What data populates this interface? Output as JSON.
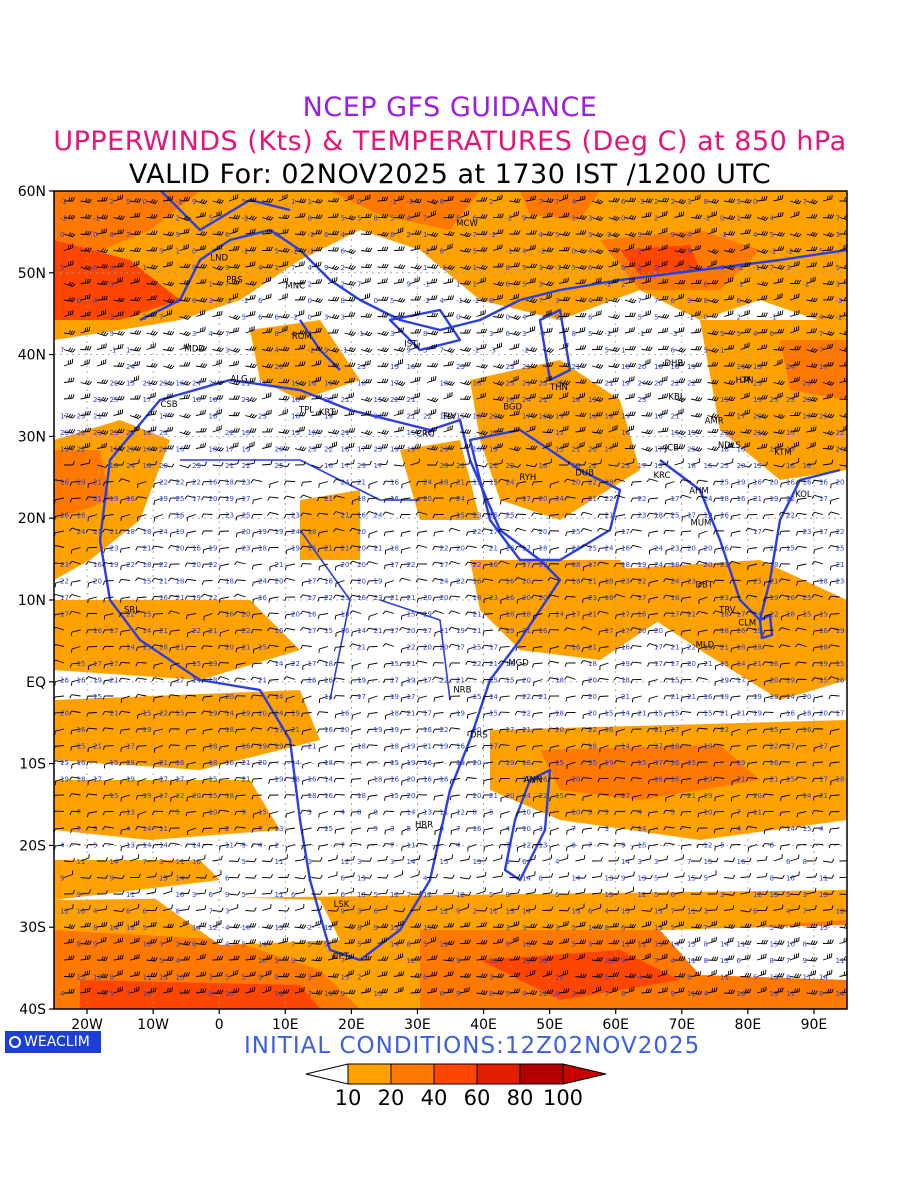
{
  "header": {
    "line1": "NCEP GFS GUIDANCE",
    "line2": "UPPERWINDS (Kts) & TEMPERATURES (Deg C) at 850 hPa",
    "line3": "VALID For: 02NOV2025 at 1730 IST /1200 UTC"
  },
  "colors": {
    "line1": "#9a1ee6",
    "line2": "#e6147a",
    "initial": "#3b5ee6",
    "coast": "#2a3ee8",
    "wind_barb": "#000000",
    "temperature_label": "#2a3ee8"
  },
  "map": {
    "lon_range": [
      -25,
      95
    ],
    "lat_range": [
      -40,
      60
    ],
    "lat_labels": [
      "60N",
      "50N",
      "40N",
      "30N",
      "20N",
      "10N",
      "EQ",
      "10S",
      "20S",
      "30S",
      "40S"
    ],
    "lon_labels": [
      "20W",
      "10W",
      "0",
      "10E",
      "20E",
      "30E",
      "40E",
      "50E",
      "60E",
      "70E",
      "80E",
      "90E"
    ],
    "stations": [
      {
        "code": "MCW",
        "lon": 37.5,
        "lat": 55.7
      },
      {
        "code": "LND",
        "lon": 0,
        "lat": 51.5
      },
      {
        "code": "PRS",
        "lon": 2.3,
        "lat": 48.8
      },
      {
        "code": "MNC",
        "lon": 11.5,
        "lat": 48.1
      },
      {
        "code": "ROM",
        "lon": 12.5,
        "lat": 41.9
      },
      {
        "code": "MDD",
        "lon": -3.7,
        "lat": 40.4
      },
      {
        "code": "ALG",
        "lon": 3.0,
        "lat": 36.7
      },
      {
        "code": "IST",
        "lon": 29.0,
        "lat": 41.0
      },
      {
        "code": "CSB",
        "lon": -7.6,
        "lat": 33.6
      },
      {
        "code": "TPL",
        "lon": 13.2,
        "lat": 32.9
      },
      {
        "code": "KRT",
        "lon": 16.3,
        "lat": 32.6
      },
      {
        "code": "CRO",
        "lon": 31.2,
        "lat": 30.0
      },
      {
        "code": "TLV",
        "lon": 34.8,
        "lat": 32.1
      },
      {
        "code": "BGD",
        "lon": 44.4,
        "lat": 33.3
      },
      {
        "code": "THN",
        "lon": 51.4,
        "lat": 35.7
      },
      {
        "code": "DHB",
        "lon": 68.8,
        "lat": 38.6
      },
      {
        "code": "KBL",
        "lon": 69.2,
        "lat": 34.5
      },
      {
        "code": "HTN",
        "lon": 79.5,
        "lat": 36.5
      },
      {
        "code": "AMR",
        "lon": 74.9,
        "lat": 31.6
      },
      {
        "code": "JCB",
        "lon": 68.5,
        "lat": 28.3
      },
      {
        "code": "NDLS",
        "lon": 77.2,
        "lat": 28.6
      },
      {
        "code": "KTM",
        "lon": 85.3,
        "lat": 27.7
      },
      {
        "code": "RYH",
        "lon": 46.7,
        "lat": 24.7
      },
      {
        "code": "DUB",
        "lon": 55.3,
        "lat": 25.2
      },
      {
        "code": "KRC",
        "lon": 67.0,
        "lat": 24.9
      },
      {
        "code": "AHM",
        "lon": 72.6,
        "lat": 23.0
      },
      {
        "code": "KOL",
        "lon": 88.4,
        "lat": 22.6
      },
      {
        "code": "MUM",
        "lon": 72.9,
        "lat": 19.1
      },
      {
        "code": "SRL",
        "lon": -13.2,
        "lat": 8.5
      },
      {
        "code": "DBT",
        "lon": 73.4,
        "lat": 11.5
      },
      {
        "code": "TRV",
        "lon": 76.9,
        "lat": 8.5
      },
      {
        "code": "CLM",
        "lon": 79.9,
        "lat": 6.9
      },
      {
        "code": "MLD",
        "lon": 73.5,
        "lat": 4.2
      },
      {
        "code": "MGD",
        "lon": 45.3,
        "lat": 2.0
      },
      {
        "code": "NRB",
        "lon": 36.8,
        "lat": -1.3
      },
      {
        "code": "DRS",
        "lon": 39.3,
        "lat": -6.8
      },
      {
        "code": "ANN",
        "lon": 47.5,
        "lat": -12.3
      },
      {
        "code": "HRR",
        "lon": 31.0,
        "lat": -17.8
      },
      {
        "code": "LSK",
        "lon": 18.5,
        "lat": -27.5
      },
      {
        "code": "CPT",
        "lon": 18.4,
        "lat": -33.9
      }
    ]
  },
  "logo": {
    "text": "WEACLIM"
  },
  "footer": {
    "initial_conditions": "INITIAL CONDITIONS:12Z02NOV2025"
  },
  "colorbar": {
    "labels": [
      "10",
      "20",
      "40",
      "60",
      "80",
      "100"
    ],
    "colors": [
      "#ffffff",
      "#ffa200",
      "#ff7800",
      "#ff4600",
      "#e11e00",
      "#b40000",
      "#c80000"
    ]
  }
}
